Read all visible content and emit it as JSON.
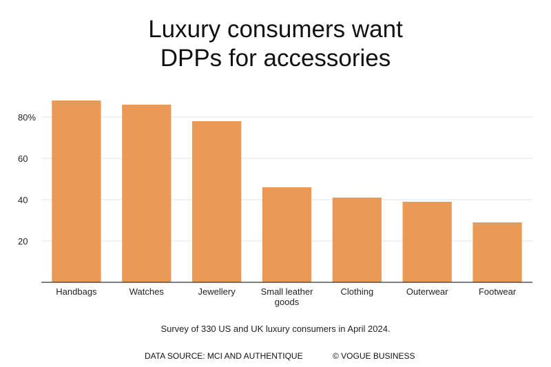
{
  "chart_data": {
    "type": "bar",
    "title_lines": [
      "Luxury consumers want",
      "DPPs for accessories"
    ],
    "categories": [
      "Handbags",
      "Watches",
      "Jewellery",
      "Small leather goods",
      "Clothing",
      "Outerwear",
      "Footwear"
    ],
    "category_label_lines": [
      [
        "Handbags"
      ],
      [
        "Watches"
      ],
      [
        "Jewellery"
      ],
      [
        "Small leather",
        "goods"
      ],
      [
        "Clothing"
      ],
      [
        "Outerwear"
      ],
      [
        "Footwear"
      ]
    ],
    "values": [
      88,
      86,
      78,
      46,
      41,
      39,
      29
    ],
    "ylim": [
      0,
      90
    ],
    "yticks": [
      20,
      40,
      60,
      80
    ],
    "ytick_labels": [
      "20",
      "40",
      "60",
      "80%"
    ],
    "grid": true,
    "bar_color": "#eb9a55",
    "gridline_color": "#e6e6e6",
    "axis_color": "#333333"
  },
  "subtitle": "Survey of 330 US and UK luxury consumers in April 2024.",
  "footer": {
    "source": "DATA SOURCE: MCI AND AUTHENTIQUE",
    "credit": "© VOGUE BUSINESS"
  }
}
